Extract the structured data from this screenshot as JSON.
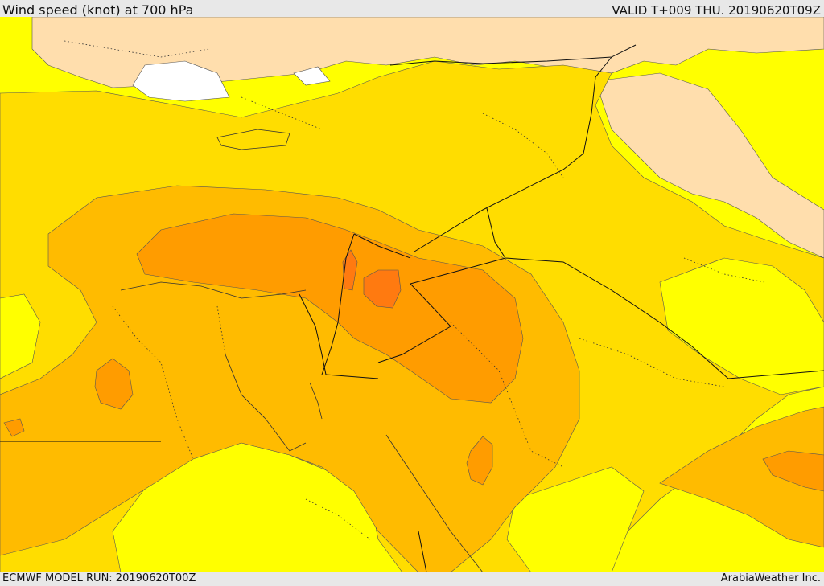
{
  "header": {
    "title": "Wind speed (knot) at 700 hPa",
    "valid": "VALID T+009 THU. 20190620T09Z"
  },
  "footer": {
    "model_run": "ECMWF MODEL RUN: 20190620T00Z",
    "credit": "ArabiaWeather Inc."
  },
  "palette": {
    "very_light": "#ffdead",
    "white_area": "#ffffff",
    "band_yellow": "#ffff00",
    "band_gold": "#ffdd00",
    "band_amber": "#ffbb00",
    "band_orange": "#ff9c00",
    "band_dark_orange": "#ff7a10"
  }
}
